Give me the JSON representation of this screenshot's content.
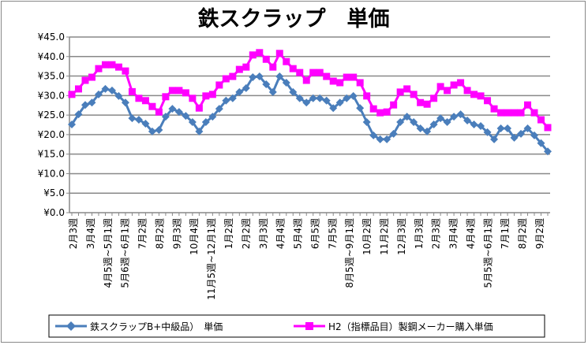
{
  "chart_data": {
    "type": "line",
    "title": "鉄スクラップ　単価",
    "xlabel": "",
    "ylabel": "",
    "ylim": [
      0,
      45
    ],
    "y_ticks": [
      "¥0.0",
      "¥5.0",
      "¥10.0",
      "¥15.0",
      "¥20.0",
      "¥25.0",
      "¥30.0",
      "¥35.0",
      "¥40.0",
      "¥45.0"
    ],
    "grid": true,
    "legend_position": "bottom",
    "x_tick_labels": [
      "2月3週",
      "3月4週",
      "4月5週~5月1週",
      "5月6週~6月1週",
      "7月2週",
      "8月2週",
      "9月3週",
      "10月4週",
      "11月5週~12月1週",
      "1月2週",
      "2月2週",
      "3月3週",
      "4月4週",
      "5月4週",
      "6月5週",
      "7月5週",
      "8月5週~9月1週",
      "10月2週",
      "11月2週",
      "12月3週",
      "1月3週",
      "2月3週",
      "3月4週",
      "4月4週",
      "5月5週~6月1週",
      "7月1週",
      "8月2週",
      "9月2週"
    ],
    "series": [
      {
        "name": "鉄スクラップB+中級品）　単価",
        "color": "#4a7ebb",
        "marker": "diamond",
        "values": [
          22.6,
          25.2,
          27.6,
          28.2,
          30.3,
          31.7,
          31.3,
          29.9,
          28.2,
          24.2,
          23.8,
          22.8,
          20.8,
          21.2,
          24.6,
          26.6,
          25.8,
          24.8,
          23.2,
          20.8,
          23.2,
          24.6,
          26.6,
          28.7,
          29.3,
          30.9,
          31.9,
          34.7,
          34.9,
          32.9,
          30.9,
          34.9,
          33.3,
          30.9,
          29.3,
          28.2,
          29.3,
          29.3,
          28.7,
          26.8,
          28.2,
          29.3,
          29.9,
          26.8,
          23.2,
          19.8,
          18.8,
          18.8,
          20.2,
          23.2,
          24.6,
          23.2,
          21.6,
          20.8,
          22.6,
          24.2,
          23.2,
          24.6,
          25.2,
          23.6,
          22.6,
          22.2,
          20.6,
          18.8,
          21.6,
          21.6,
          19.2,
          20.2,
          21.6,
          19.8,
          17.8,
          15.7
        ]
      },
      {
        "name": "H2（指標品目）製鋼メーカー購入単価",
        "color": "#ff00ff",
        "marker": "square",
        "values": [
          30.3,
          31.7,
          33.9,
          34.7,
          36.9,
          37.9,
          37.9,
          37.3,
          36.3,
          31.0,
          29.3,
          28.7,
          27.2,
          25.8,
          29.7,
          31.3,
          31.3,
          30.7,
          29.3,
          26.8,
          29.9,
          30.3,
          32.7,
          34.3,
          34.9,
          36.7,
          37.3,
          40.4,
          41.0,
          39.3,
          37.3,
          40.8,
          38.7,
          36.9,
          35.9,
          33.9,
          35.9,
          35.9,
          34.9,
          33.7,
          33.3,
          34.7,
          34.7,
          33.3,
          29.9,
          26.6,
          25.6,
          25.8,
          27.6,
          30.9,
          31.7,
          30.3,
          28.2,
          27.8,
          29.3,
          32.3,
          31.3,
          32.7,
          33.3,
          31.3,
          30.3,
          29.9,
          28.7,
          26.6,
          25.6,
          25.6,
          25.6,
          25.6,
          27.6,
          25.6,
          23.8,
          21.8
        ]
      }
    ]
  }
}
